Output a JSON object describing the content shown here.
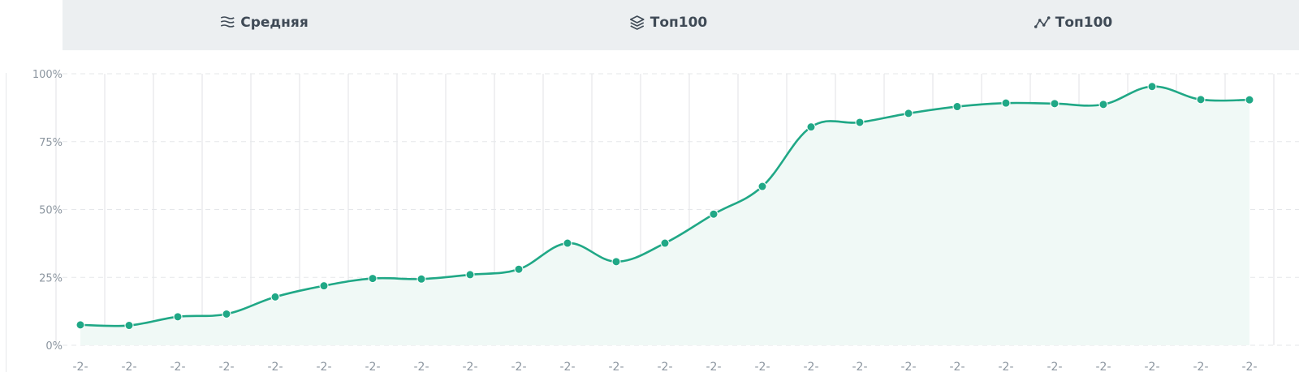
{
  "tabs": [
    {
      "label": "Средняя",
      "icon": "layers-wave-icon"
    },
    {
      "label": "Топ100",
      "icon": "stack-icon"
    },
    {
      "label": "Топ100",
      "icon": "line-chart-icon"
    }
  ],
  "colors": {
    "line": "#20a886",
    "area": "#f0f9f6",
    "grid": "#e5e7ea",
    "tab_bg": "#eceff1",
    "tab_text": "#3f4a56",
    "axis_text": "#8c96a0"
  },
  "chart_data": {
    "type": "area",
    "ylim": [
      0,
      100
    ],
    "yticks": [
      "0%",
      "25%",
      "50%",
      "75%",
      "100%"
    ],
    "grid": true,
    "x_tick_labels": [
      "-2-",
      "-2-",
      "-2-",
      "-2-",
      "-2-",
      "-2-",
      "-2-",
      "-2-",
      "-2-",
      "-2-",
      "-2-",
      "-2-",
      "-2-",
      "-2-",
      "-2-",
      "-2-",
      "-2-",
      "-2-",
      "-2-",
      "-2-",
      "-2-",
      "-2-",
      "-2-",
      "-2-",
      "-2-"
    ],
    "series": [
      {
        "values": [
          7.5,
          7.3,
          10.5,
          11.5,
          17.8,
          21.9,
          24.6,
          24.4,
          26.0,
          28.0,
          37.6,
          30.8,
          37.6,
          48.3,
          58.5,
          80.4,
          82.1,
          85.4,
          87.9,
          89.2,
          89.0,
          88.7,
          95.3,
          90.5,
          90.4
        ]
      }
    ]
  }
}
